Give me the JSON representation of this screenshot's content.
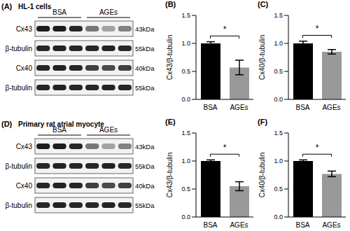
{
  "chart_data": [
    {
      "type": "bar",
      "title": "(B)",
      "y_label": "Cx43/β-tubulin",
      "categories": [
        "BSA",
        "AGEs"
      ],
      "values": [
        1.0,
        0.57
      ],
      "errors": [
        0.03,
        0.13
      ],
      "colors": [
        "#000000",
        "#999999"
      ],
      "ylim": [
        0,
        1.5
      ],
      "yticks": [
        {
          "value": 0,
          "label": "0.0"
        },
        {
          "value": 0.5,
          "label": "0.5"
        },
        {
          "value": 1,
          "label": "1.0"
        },
        {
          "value": 1.5,
          "label": "1.5"
        }
      ],
      "annotations": [
        "*"
      ]
    },
    {
      "type": "bar",
      "title": "(C)",
      "y_label": "Cx40/β-tubulin",
      "categories": [
        "BSA",
        "AGEs"
      ],
      "values": [
        1.0,
        0.85
      ],
      "errors": [
        0.04,
        0.04
      ],
      "colors": [
        "#000000",
        "#999999"
      ],
      "ylim": [
        0,
        1.5
      ],
      "yticks": [
        {
          "value": 0,
          "label": "0.0"
        },
        {
          "value": 0.5,
          "label": "0.5"
        },
        {
          "value": 1,
          "label": "1.0"
        },
        {
          "value": 1.5,
          "label": "1.5"
        }
      ],
      "annotations": [
        "*"
      ]
    },
    {
      "type": "bar",
      "title": "(E)",
      "y_label": "Cx43/β-tubulin",
      "categories": [
        "BSA",
        "AGEs"
      ],
      "values": [
        1.0,
        0.55
      ],
      "errors": [
        0.02,
        0.08
      ],
      "colors": [
        "#000000",
        "#999999"
      ],
      "ylim": [
        0,
        1.5
      ],
      "yticks": [
        {
          "value": 0,
          "label": "0.0"
        },
        {
          "value": 0.5,
          "label": "0.5"
        },
        {
          "value": 1,
          "label": "1.0"
        },
        {
          "value": 1.5,
          "label": "1.5"
        }
      ],
      "annotations": [
        "*"
      ]
    },
    {
      "type": "bar",
      "title": "(F)",
      "y_label": "Cx40/β-tubulin",
      "categories": [
        "BSA",
        "AGEs"
      ],
      "values": [
        1.0,
        0.77
      ],
      "errors": [
        0.02,
        0.05
      ],
      "colors": [
        "#000000",
        "#999999"
      ],
      "ylim": [
        0,
        1.5
      ],
      "yticks": [
        {
          "value": 0,
          "label": "0.0"
        },
        {
          "value": 0.5,
          "label": "0.5"
        },
        {
          "value": 1,
          "label": "1.0"
        },
        {
          "value": 1.5,
          "label": "1.5"
        }
      ],
      "annotations": [
        "*"
      ]
    }
  ],
  "blots": [
    {
      "panel": "(A)",
      "title": "HL-1 cells",
      "groups": [
        "BSA",
        "AGEs"
      ],
      "rows": [
        {
          "protein": "Cx43",
          "size": "43kDa"
        },
        {
          "protein": "β-tubulin",
          "size": "55kDa"
        },
        {
          "protein": "Cx40",
          "size": "40kDa"
        },
        {
          "protein": "β-tubulin",
          "size": "55kDa"
        }
      ]
    },
    {
      "panel": "(D)",
      "title": "Primary rat atrial myocyte",
      "groups": [
        "BSA",
        "AGEs"
      ],
      "rows": [
        {
          "protein": "Cx43",
          "size": "43kDa"
        },
        {
          "protein": "β-tubulin",
          "size": "55kDa"
        },
        {
          "protein": "Cx40",
          "size": "40kDa"
        },
        {
          "protein": "β-tubulin",
          "size": "55kDa"
        }
      ]
    }
  ]
}
